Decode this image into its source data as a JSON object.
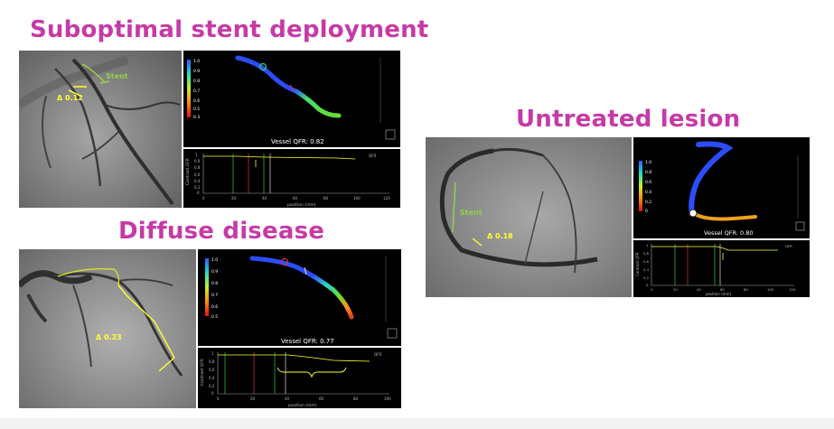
{
  "titles": {
    "suboptimal": "Suboptimal stent deployment",
    "diffuse": "Diffuse disease",
    "untreated": "Untreated lesion"
  },
  "panel_suboptimal": {
    "angio_stent_label": "Stent",
    "angio_delta_label": "Δ 0.12",
    "vessel_qfr_label": "Vessel QFR: 0.82",
    "colorbar_ticks": [
      "1.0",
      "0.9",
      "0.8",
      "0.7",
      "0.6",
      "0.5",
      "0.3"
    ],
    "plot_ylabel": "Contrast QFR",
    "plot_xlabel": "position (mm)",
    "plot_legend": "QFR",
    "plot_yticks": [
      "1",
      "0,9",
      "0,8",
      "0,6",
      "0,4",
      "0,2",
      "0"
    ],
    "plot_xticks": [
      "0",
      "20",
      "40",
      "60",
      "80",
      "100",
      "120"
    ]
  },
  "panel_diffuse": {
    "angio_delta_label": "Δ 0.23",
    "vessel_qfr_label": "Vessel QFR: 0.77",
    "colorbar_ticks": [
      "1.0",
      "0.9",
      "0.8",
      "0.7",
      "0.6",
      "0.5"
    ],
    "plot_ylabel": "Contrast QFR",
    "plot_xlabel": "position (mm)",
    "plot_legend": "QFR",
    "plot_yticks": [
      "1",
      "0,8",
      "0,6",
      "0,4",
      "0,2",
      "0"
    ],
    "plot_xticks": [
      "0",
      "20",
      "40",
      "60",
      "80",
      "100"
    ]
  },
  "panel_untreated": {
    "angio_stent_label": "Stent",
    "angio_delta_label": "Δ 0.18",
    "vessel_qfr_label": "Vessel QFR: 0.80",
    "colorbar_ticks": [
      "1.0",
      "0.8",
      "0.6",
      "0.4",
      "0.2",
      "0"
    ],
    "plot_ylabel": "Contrast QFR",
    "plot_xlabel": "position (mm)",
    "plot_legend": "QFR",
    "plot_yticks": [
      "1",
      "0,8",
      "0,6",
      "0,4",
      "0,2",
      "0"
    ],
    "plot_xticks": [
      "0",
      "20",
      "40",
      "60",
      "80",
      "100",
      "120"
    ]
  },
  "colors": {
    "title": "#c63aa6",
    "annotation_yellow": "#ffff33",
    "annotation_green": "#8fd34a",
    "marker_green": "#2ecc40",
    "marker_red": "#e0304a"
  }
}
